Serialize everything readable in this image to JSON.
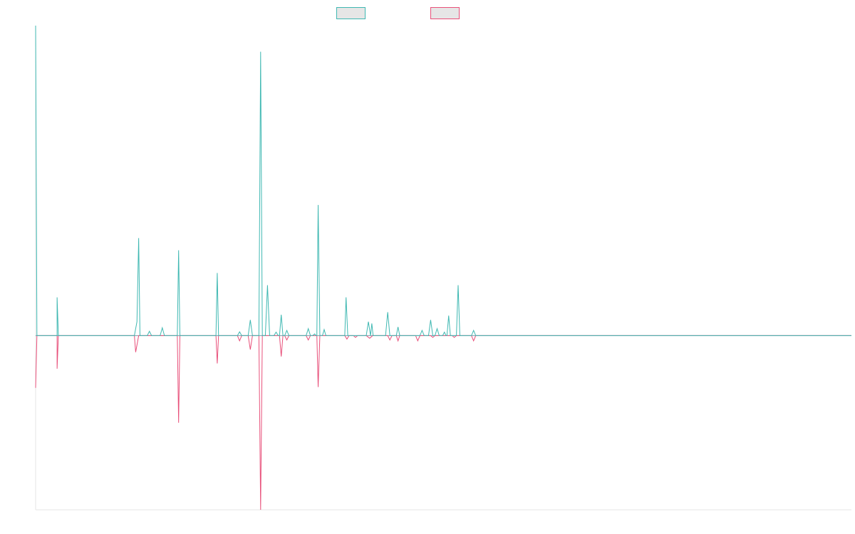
{
  "chart_data": {
    "type": "line",
    "title": "",
    "xlabel": "",
    "ylabel": "",
    "x_range": [
      0,
      190
    ],
    "y_range": [
      -100,
      178
    ],
    "grid": false,
    "legend_position": "top-center",
    "series": [
      {
        "color": "#3fb8b2",
        "fill": "#e6e6e6",
        "points": [
          [
            0,
            178
          ],
          [
            0.3,
            0
          ],
          [
            5,
            0
          ],
          [
            5,
            22
          ],
          [
            5.3,
            0
          ],
          [
            23,
            0
          ],
          [
            23.6,
            8
          ],
          [
            24,
            56
          ],
          [
            24.3,
            0
          ],
          [
            26,
            0
          ],
          [
            26.5,
            2.5
          ],
          [
            27,
            0
          ],
          [
            29,
            0
          ],
          [
            29.5,
            4.5
          ],
          [
            30,
            0
          ],
          [
            33,
            0
          ],
          [
            33.3,
            49
          ],
          [
            33.6,
            0
          ],
          [
            42,
            0
          ],
          [
            42.3,
            36
          ],
          [
            42.6,
            0
          ],
          [
            47,
            0
          ],
          [
            47.5,
            2.2
          ],
          [
            48,
            0
          ],
          [
            49.5,
            0
          ],
          [
            50,
            9
          ],
          [
            50.5,
            0
          ],
          [
            52,
            0
          ],
          [
            52.4,
            163
          ],
          [
            52.8,
            0
          ],
          [
            53.5,
            0
          ],
          [
            54,
            29
          ],
          [
            54.5,
            0
          ],
          [
            55.5,
            0
          ],
          [
            56,
            2
          ],
          [
            56.5,
            0
          ],
          [
            56.8,
            0
          ],
          [
            57.2,
            12
          ],
          [
            57.6,
            0
          ],
          [
            58,
            0
          ],
          [
            58.5,
            3
          ],
          [
            59,
            0
          ],
          [
            63,
            0
          ],
          [
            63.5,
            4
          ],
          [
            64,
            0
          ],
          [
            64.5,
            0
          ],
          [
            65,
            1
          ],
          [
            65.3,
            0
          ],
          [
            65.5,
            0
          ],
          [
            65.8,
            75
          ],
          [
            66.2,
            0
          ],
          [
            66.8,
            0
          ],
          [
            67.2,
            3.5
          ],
          [
            67.6,
            0
          ],
          [
            72,
            0
          ],
          [
            72.3,
            22
          ],
          [
            72.7,
            0
          ],
          [
            77,
            0
          ],
          [
            77.5,
            8
          ],
          [
            78,
            0
          ],
          [
            78.3,
            7
          ],
          [
            78.6,
            0
          ],
          [
            81.5,
            0
          ],
          [
            82,
            13.5
          ],
          [
            82.5,
            0
          ],
          [
            84,
            0
          ],
          [
            84.4,
            5
          ],
          [
            84.8,
            0
          ],
          [
            89.5,
            0
          ],
          [
            90,
            3
          ],
          [
            90.5,
            0
          ],
          [
            91.5,
            0
          ],
          [
            92,
            9
          ],
          [
            92.5,
            0
          ],
          [
            93,
            0
          ],
          [
            93.5,
            4
          ],
          [
            94,
            0
          ],
          [
            94.8,
            0
          ],
          [
            95.2,
            2
          ],
          [
            95.6,
            0
          ],
          [
            95.8,
            0
          ],
          [
            96.2,
            11.5
          ],
          [
            96.6,
            0
          ],
          [
            98,
            0
          ],
          [
            98.4,
            29
          ],
          [
            98.8,
            0
          ],
          [
            101.5,
            0
          ],
          [
            102,
            3
          ],
          [
            102.5,
            0
          ],
          [
            190,
            0
          ]
        ]
      },
      {
        "color": "#e8507a",
        "fill": "#e6e6e6",
        "points": [
          [
            0,
            -30
          ],
          [
            0.3,
            0
          ],
          [
            5,
            0
          ],
          [
            5,
            -19
          ],
          [
            5.3,
            0
          ],
          [
            23,
            0
          ],
          [
            23.3,
            -9.5
          ],
          [
            24,
            0
          ],
          [
            33,
            0
          ],
          [
            33.3,
            -50
          ],
          [
            33.6,
            0
          ],
          [
            42,
            0
          ],
          [
            42.3,
            -16
          ],
          [
            42.6,
            0
          ],
          [
            47,
            0
          ],
          [
            47.5,
            -3
          ],
          [
            48,
            0
          ],
          [
            49.5,
            0
          ],
          [
            50,
            -8
          ],
          [
            50.5,
            0
          ],
          [
            52,
            0
          ],
          [
            52.4,
            -100
          ],
          [
            52.8,
            0
          ],
          [
            56.8,
            0
          ],
          [
            57.2,
            -12
          ],
          [
            57.6,
            0
          ],
          [
            58,
            0
          ],
          [
            58.5,
            -2.5
          ],
          [
            59,
            0
          ],
          [
            63,
            0
          ],
          [
            63.5,
            -2.5
          ],
          [
            64,
            0
          ],
          [
            65.5,
            0
          ],
          [
            65.8,
            -29.5
          ],
          [
            66.2,
            0
          ],
          [
            72,
            0
          ],
          [
            72.5,
            -2
          ],
          [
            73,
            0
          ],
          [
            74,
            0
          ],
          [
            74.5,
            -1
          ],
          [
            75,
            0
          ],
          [
            77,
            0
          ],
          [
            77.8,
            -1.5
          ],
          [
            78.5,
            0
          ],
          [
            82,
            0
          ],
          [
            82.5,
            -2.5
          ],
          [
            83,
            0
          ],
          [
            84,
            0
          ],
          [
            84.4,
            -3
          ],
          [
            84.8,
            0
          ],
          [
            88.5,
            0
          ],
          [
            89,
            -3
          ],
          [
            89.5,
            0
          ],
          [
            92,
            0
          ],
          [
            92.5,
            -1
          ],
          [
            93,
            0
          ],
          [
            97,
            0
          ],
          [
            97.5,
            -1
          ],
          [
            98,
            0
          ],
          [
            101.5,
            0
          ],
          [
            102,
            -3
          ],
          [
            102.5,
            0
          ],
          [
            190,
            0
          ]
        ]
      }
    ]
  }
}
